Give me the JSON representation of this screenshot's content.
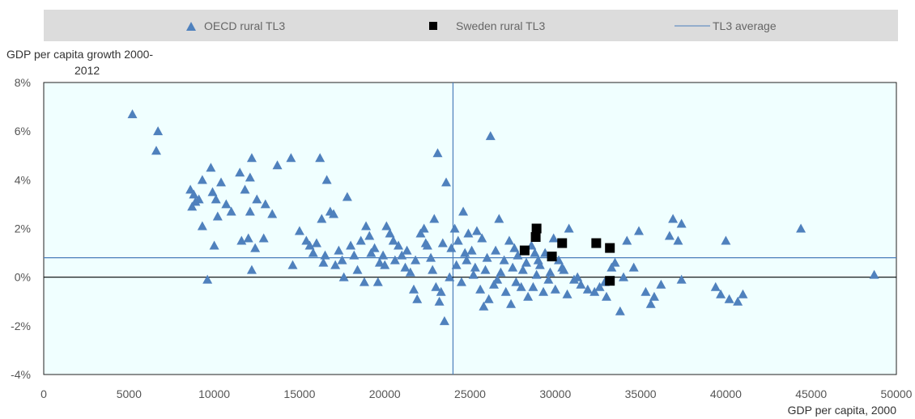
{
  "chart_data": {
    "type": "scatter",
    "xlabel": "GDP per capita, 2000",
    "ylabel": "GDP per capita growth 2000-2012",
    "ylabel_lines": [
      "GDP per capita growth 2000-",
      "2012"
    ],
    "xlim": [
      0,
      50000
    ],
    "ylim": [
      -4,
      8
    ],
    "x_ticks": [
      0,
      5000,
      10000,
      15000,
      20000,
      25000,
      30000,
      35000,
      40000,
      45000,
      50000
    ],
    "x_tick_labels": [
      "0",
      "5000",
      "10000",
      "15000",
      "20000",
      "25000",
      "30000",
      "35000",
      "40000",
      "45000",
      "50000"
    ],
    "y_ticks": [
      -4,
      -2,
      0,
      2,
      4,
      6,
      8
    ],
    "y_tick_labels": [
      "-4%",
      "-2%",
      "0%",
      "2%",
      "4%",
      "6%",
      "8%"
    ],
    "legend_position": "top",
    "grid": false,
    "plot_background": "#f0ffff",
    "reference_lines": {
      "x": 24000,
      "y": 0.8,
      "color": "#4a7ebb"
    },
    "series": [
      {
        "name": "OECD rural TL3",
        "marker": "triangle",
        "color": "#4f81bd",
        "points": [
          [
            5200,
            6.7
          ],
          [
            6700,
            6.0
          ],
          [
            6600,
            5.2
          ],
          [
            8600,
            3.6
          ],
          [
            8800,
            3.4
          ],
          [
            9100,
            3.2
          ],
          [
            9300,
            4.0
          ],
          [
            9800,
            4.5
          ],
          [
            9900,
            3.5
          ],
          [
            10100,
            3.2
          ],
          [
            10400,
            3.9
          ],
          [
            10700,
            3.0
          ],
          [
            11000,
            2.7
          ],
          [
            11500,
            4.3
          ],
          [
            11800,
            3.6
          ],
          [
            12100,
            4.1
          ],
          [
            12200,
            4.9
          ],
          [
            12500,
            3.2
          ],
          [
            13000,
            3.0
          ],
          [
            13400,
            2.6
          ],
          [
            13700,
            4.6
          ],
          [
            12100,
            2.7
          ],
          [
            11600,
            1.5
          ],
          [
            12000,
            1.6
          ],
          [
            12400,
            1.2
          ],
          [
            12900,
            1.6
          ],
          [
            12200,
            0.3
          ],
          [
            9600,
            -0.1
          ],
          [
            9300,
            2.1
          ],
          [
            10000,
            1.3
          ],
          [
            10200,
            2.5
          ],
          [
            8700,
            2.9
          ],
          [
            8900,
            3.1
          ],
          [
            14500,
            4.9
          ],
          [
            16200,
            4.9
          ],
          [
            16600,
            4.0
          ],
          [
            16800,
            2.7
          ],
          [
            17000,
            2.6
          ],
          [
            16300,
            2.4
          ],
          [
            17800,
            3.3
          ],
          [
            15000,
            1.9
          ],
          [
            15400,
            1.5
          ],
          [
            15600,
            1.3
          ],
          [
            15800,
            1.0
          ],
          [
            16000,
            1.4
          ],
          [
            16500,
            0.9
          ],
          [
            17100,
            0.5
          ],
          [
            17500,
            0.7
          ],
          [
            18000,
            1.3
          ],
          [
            18200,
            0.9
          ],
          [
            18600,
            1.5
          ],
          [
            18900,
            2.1
          ],
          [
            19100,
            1.7
          ],
          [
            19400,
            1.2
          ],
          [
            19700,
            0.6
          ],
          [
            19900,
            0.9
          ],
          [
            20100,
            2.1
          ],
          [
            20300,
            1.8
          ],
          [
            20500,
            1.5
          ],
          [
            20800,
            1.3
          ],
          [
            21000,
            0.9
          ],
          [
            21200,
            0.4
          ],
          [
            21500,
            0.2
          ],
          [
            21700,
            -0.5
          ],
          [
            21900,
            -0.9
          ],
          [
            22100,
            1.8
          ],
          [
            22300,
            2.0
          ],
          [
            22500,
            1.3
          ],
          [
            22700,
            0.8
          ],
          [
            22900,
            2.4
          ],
          [
            23100,
            5.1
          ],
          [
            23400,
            1.4
          ],
          [
            23600,
            3.9
          ],
          [
            23900,
            1.2
          ],
          [
            24100,
            2.0
          ],
          [
            24300,
            1.5
          ],
          [
            24600,
            2.7
          ],
          [
            24900,
            1.8
          ],
          [
            25100,
            1.1
          ],
          [
            25400,
            1.9
          ],
          [
            25700,
            1.6
          ],
          [
            25900,
            0.3
          ],
          [
            26200,
            5.8
          ],
          [
            26500,
            1.1
          ],
          [
            26700,
            2.4
          ],
          [
            27000,
            0.7
          ],
          [
            27300,
            1.5
          ],
          [
            27500,
            0.4
          ],
          [
            27800,
            0.9
          ],
          [
            28000,
            -0.4
          ],
          [
            28300,
            0.6
          ],
          [
            28600,
            1.3
          ],
          [
            28900,
            0.1
          ],
          [
            29100,
            0.5
          ],
          [
            29400,
            1.0
          ],
          [
            29700,
            0.2
          ],
          [
            29900,
            1.6
          ],
          [
            30200,
            0.7
          ],
          [
            30500,
            0.3
          ],
          [
            30800,
            2.0
          ],
          [
            31100,
            -0.1
          ],
          [
            31500,
            -0.3
          ],
          [
            31900,
            -0.5
          ],
          [
            32300,
            -0.6
          ],
          [
            32600,
            -0.4
          ],
          [
            33000,
            -0.8
          ],
          [
            33300,
            0.4
          ],
          [
            33500,
            0.6
          ],
          [
            33800,
            -1.4
          ],
          [
            34200,
            1.5
          ],
          [
            34600,
            0.4
          ],
          [
            34900,
            1.9
          ],
          [
            35300,
            -0.6
          ],
          [
            35600,
            -1.1
          ],
          [
            35800,
            -0.8
          ],
          [
            36200,
            -0.3
          ],
          [
            36700,
            1.7
          ],
          [
            36900,
            2.4
          ],
          [
            37200,
            1.5
          ],
          [
            37400,
            2.2
          ],
          [
            37400,
            -0.1
          ],
          [
            39400,
            -0.4
          ],
          [
            39700,
            -0.7
          ],
          [
            40000,
            1.5
          ],
          [
            40200,
            -0.9
          ],
          [
            40700,
            -1.0
          ],
          [
            41000,
            -0.7
          ],
          [
            44400,
            2.0
          ],
          [
            48700,
            0.1
          ],
          [
            23000,
            -0.4
          ],
          [
            23200,
            -1.0
          ],
          [
            23500,
            -1.8
          ],
          [
            23300,
            -0.6
          ],
          [
            22800,
            0.3
          ],
          [
            24200,
            0.5
          ],
          [
            24500,
            -0.2
          ],
          [
            24800,
            0.7
          ],
          [
            25200,
            0.1
          ],
          [
            25600,
            -0.5
          ],
          [
            25800,
            -1.2
          ],
          [
            26100,
            -0.9
          ],
          [
            26400,
            -0.3
          ],
          [
            26800,
            0.2
          ],
          [
            27100,
            -0.6
          ],
          [
            27400,
            -1.1
          ],
          [
            27700,
            -0.2
          ],
          [
            28100,
            0.3
          ],
          [
            28400,
            -0.8
          ],
          [
            28700,
            -0.4
          ],
          [
            29000,
            0.7
          ],
          [
            29300,
            -0.6
          ],
          [
            29600,
            -0.1
          ],
          [
            30000,
            -0.5
          ],
          [
            30400,
            0.4
          ],
          [
            30700,
            -0.7
          ],
          [
            21300,
            1.1
          ],
          [
            20600,
            0.7
          ],
          [
            19600,
            -0.2
          ],
          [
            18800,
            -0.2
          ],
          [
            18400,
            0.3
          ],
          [
            17600,
            0.0
          ],
          [
            14600,
            0.5
          ],
          [
            16400,
            0.6
          ],
          [
            17300,
            1.1
          ],
          [
            19200,
            1.0
          ],
          [
            20000,
            0.5
          ],
          [
            21800,
            0.7
          ],
          [
            22400,
            1.4
          ],
          [
            23800,
            0.0
          ],
          [
            24700,
            1.0
          ],
          [
            25300,
            0.4
          ],
          [
            26000,
            0.8
          ],
          [
            26600,
            -0.1
          ],
          [
            27600,
            1.2
          ],
          [
            28800,
            1.0
          ],
          [
            31300,
            0.0
          ],
          [
            32900,
            -0.2
          ],
          [
            34000,
            0.0
          ]
        ]
      },
      {
        "name": "Sweden rural TL3",
        "marker": "square",
        "color": "#000000",
        "points": [
          [
            28200,
            1.1
          ],
          [
            28900,
            2.0
          ],
          [
            28850,
            1.65
          ],
          [
            29800,
            0.85
          ],
          [
            30400,
            1.4
          ],
          [
            32400,
            1.4
          ],
          [
            33200,
            1.2
          ],
          [
            33200,
            -0.15
          ]
        ]
      },
      {
        "name": "TL3 average",
        "marker": "line",
        "color": "#4a7ebb"
      }
    ]
  }
}
